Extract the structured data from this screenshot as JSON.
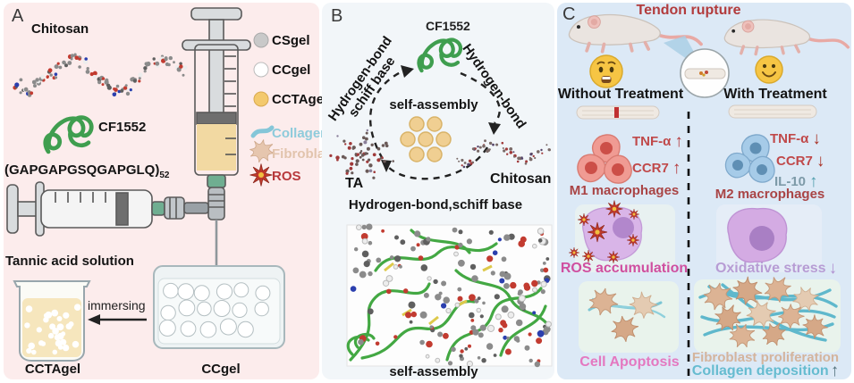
{
  "figure": {
    "colors": {
      "panel_a_bg": "#fcecec",
      "panel_b_bg": "#f2f6f9",
      "panel_c_bg": "#dce9f6",
      "tendon_title_red": "#b23b3c",
      "marker_red": "#c0494a",
      "macrophage_label_red": "#a94445",
      "il10_text": "#7d9aa8",
      "il10_arrow_teal": "#4f9fae",
      "ros_pink": "#cf4fa0",
      "oxidative_purple": "#b79cd4",
      "apoptosis_pink": "#e478c0",
      "fibroblast_tan": "#d4b49c",
      "collagen_teal": "#66bcd0",
      "cf1552_green": "#3f9e4f",
      "gel_yellow": "#f3c96d"
    },
    "panels": {
      "a": {
        "label": "A",
        "chitosan_label": "Chitosan",
        "cf1552_label": "CF1552",
        "sequence_main": "(GAPGAPGSQGAPGLQ)",
        "sequence_sub": "52",
        "legend": [
          {
            "label": "CSgel",
            "icon": "gray-gel-sphere-icon"
          },
          {
            "label": "CCgel",
            "icon": "white-gel-sphere-icon"
          },
          {
            "label": "CCTAgel",
            "icon": "yellow-gel-sphere-icon"
          },
          {
            "label": "Collagen",
            "icon": "collagen-fiber-icon"
          },
          {
            "label": "Fibroblast",
            "icon": "fibroblast-cell-icon"
          },
          {
            "label": "ROS",
            "icon": "ros-burst-icon"
          }
        ],
        "tannic_label": "Tannic acid solution",
        "immersing_label": "immersing",
        "cctagel_label": "CCTAgel",
        "ccgel_label": "CCgel"
      },
      "b": {
        "label": "B",
        "cf1552_label": "CF1552",
        "left_edge_line1": "Hydrogen-bond",
        "left_edge_line2": "schiff base",
        "right_edge_label": "Hydrogen-bond",
        "center_label": "self-assembly",
        "ta_label": "TA",
        "chitosan_label": "Chitosan",
        "bottom_label": "Hydrogen-bond,schiff base",
        "md_caption": "self-assembly"
      },
      "c": {
        "label": "C",
        "title": "Tendon rupture",
        "left_heading": "Without Treatment",
        "right_heading": "With Treatment",
        "left_markers": [
          {
            "name": "TNF-α",
            "direction": "↑"
          },
          {
            "name": "CCR7",
            "direction": "↑"
          }
        ],
        "left_cells_label": "M1 macrophages",
        "right_markers": [
          {
            "name": "TNF-α",
            "direction": "↓"
          },
          {
            "name": "CCR7",
            "direction": "↓"
          },
          {
            "name": "IL-10",
            "direction": "↑"
          }
        ],
        "right_cells_label": "M2 macrophages",
        "left_ros_label": "ROS accumulation",
        "right_ros_label": "Oxidative stress",
        "right_ros_direction": "↓",
        "left_fibro_label": "Cell Apoptosis",
        "right_fibro_label1": "Fibroblast proliferation",
        "right_fibro_label2": "Collagen deposition",
        "right_fibro_direction": "↑"
      }
    }
  }
}
